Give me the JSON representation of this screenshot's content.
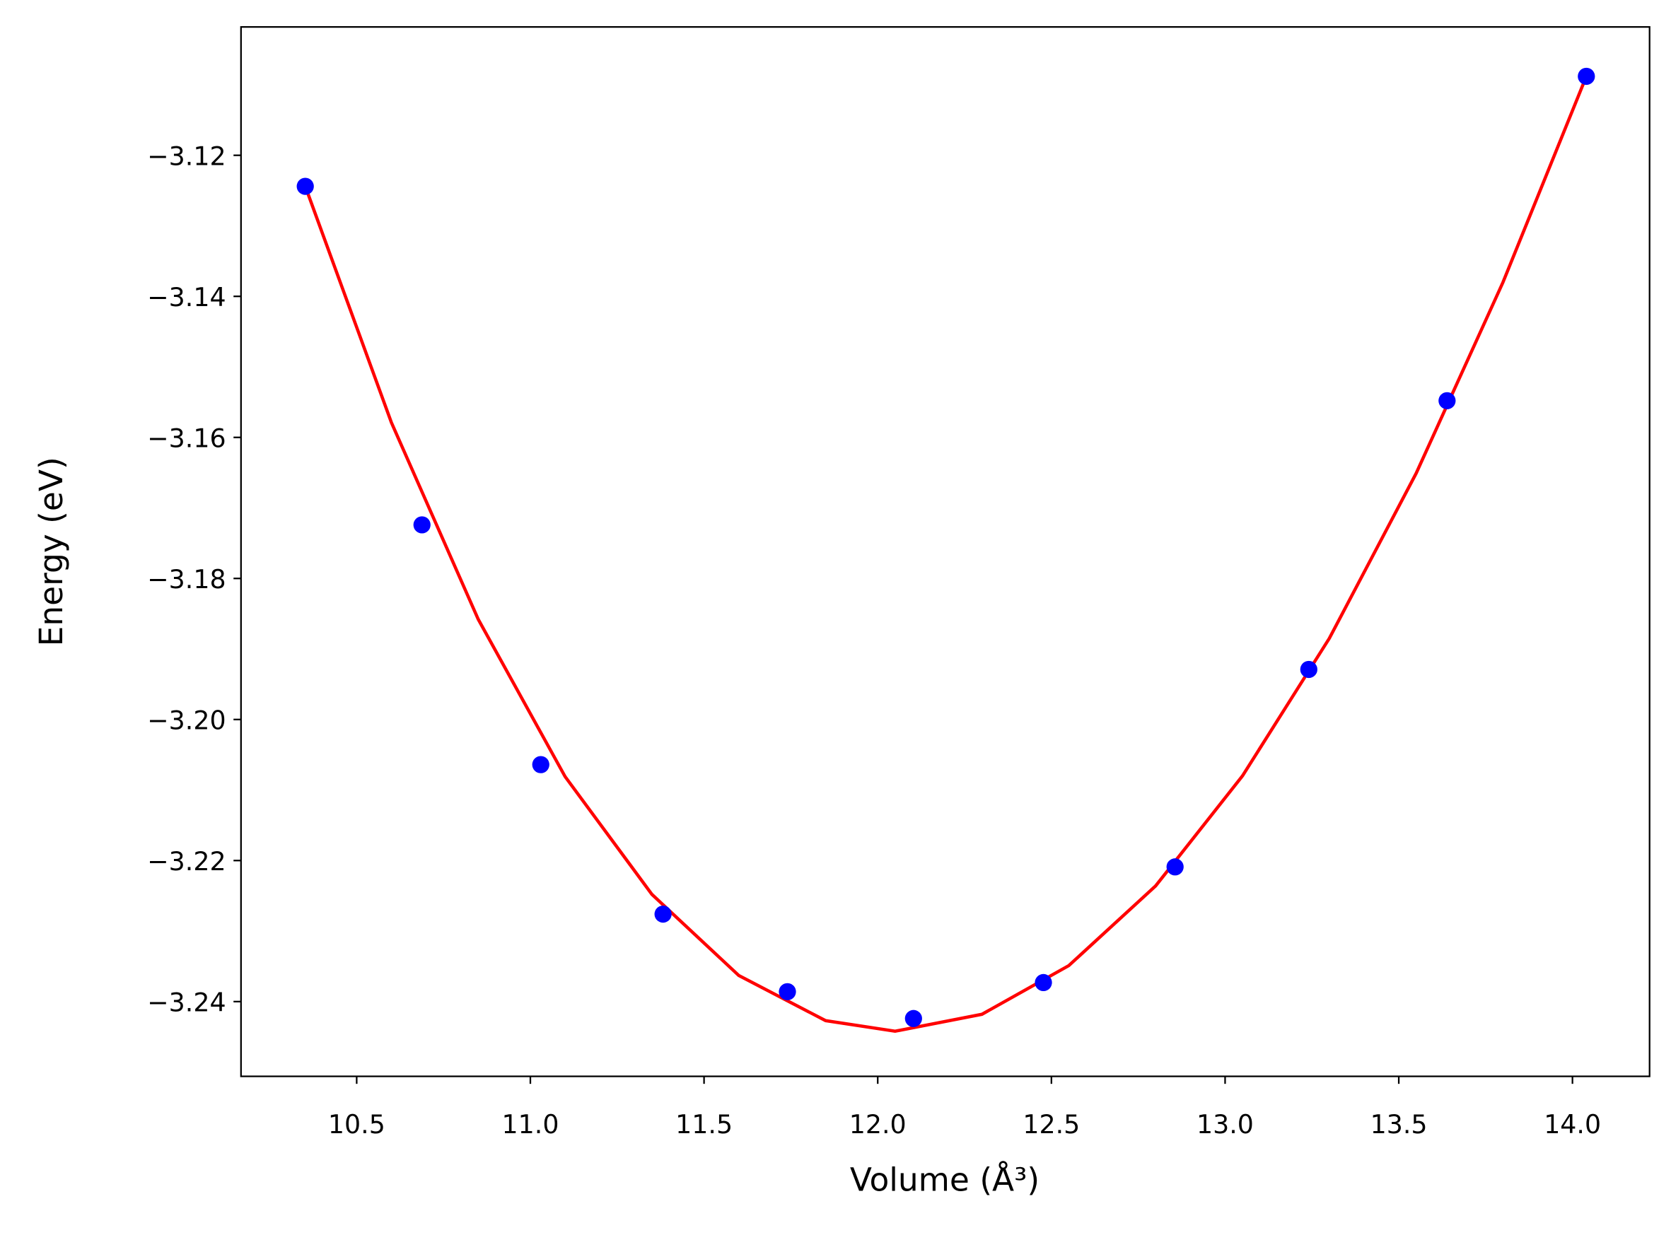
{
  "chart_data": {
    "type": "scatter",
    "xlabel": "Volume (Å³)",
    "ylabel": "Energy (eV)",
    "xlim": [
      10.167,
      14.222
    ],
    "ylim": [
      -3.2506,
      -3.1018
    ],
    "xticks": [
      10.5,
      {
        "value": 11,
        "label": "11.0"
      },
      11.5,
      {
        "value": 12,
        "label": "12.0"
      },
      12.5,
      {
        "value": 13,
        "label": "13.0"
      },
      13.5,
      {
        "value": 14,
        "label": "14.0"
      }
    ],
    "yticks": [
      {
        "value": -3.12,
        "label": "−3.12"
      },
      {
        "value": -3.14,
        "label": "−3.14"
      },
      {
        "value": -3.16,
        "label": "−3.16"
      },
      {
        "value": -3.18,
        "label": "−3.18"
      },
      {
        "value": -3.2,
        "label": "−3.20"
      },
      {
        "value": -3.22,
        "label": "−3.22"
      },
      {
        "value": -3.24,
        "label": "−3.24"
      }
    ],
    "grid": false,
    "series": [
      {
        "type": "line",
        "color": "#ff0000",
        "x": [
          10.352,
          10.6,
          10.85,
          11.1,
          11.35,
          11.6,
          11.85,
          12.05,
          12.3,
          12.55,
          12.8,
          13.05,
          13.3,
          13.55,
          13.8,
          14.04
        ],
        "values": [
          -3.1244,
          -3.1579,
          -3.1858,
          -3.2081,
          -3.2248,
          -3.2363,
          -3.2427,
          -3.2442,
          -3.2418,
          -3.2349,
          -3.2236,
          -3.208,
          -3.1885,
          -3.1651,
          -3.138,
          -3.1088
        ]
      },
      {
        "type": "scatter",
        "color": "#0000ff",
        "x": [
          10.352,
          10.688,
          11.03,
          11.382,
          11.74,
          12.103,
          12.477,
          12.856,
          13.241,
          13.639,
          14.04
        ],
        "values": [
          -3.1244,
          -3.1724,
          -3.2064,
          -3.2276,
          -3.2386,
          -3.2424,
          -3.2373,
          -3.2209,
          -3.1929,
          -3.1548,
          -3.1088
        ]
      }
    ]
  }
}
